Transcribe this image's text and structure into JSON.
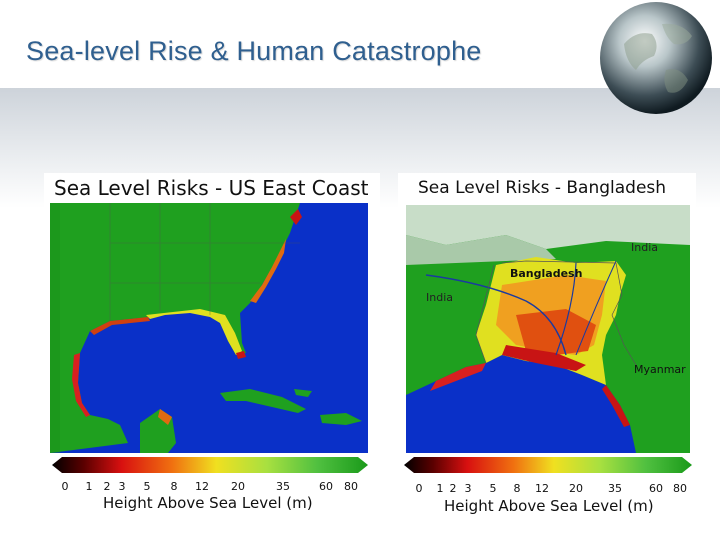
{
  "slide": {
    "title": "Sea-level Rise & Human Catastrophe"
  },
  "maps": [
    {
      "title": "Sea Level Risks - US East Coast",
      "ticks": [
        "0",
        "1",
        "2",
        "3",
        "5",
        "8",
        "12",
        "20",
        "35",
        "60",
        "80"
      ],
      "scale_label": "Height Above Sea Level (m)"
    },
    {
      "title": "Sea Level Risks - Bangladesh",
      "ticks": [
        "0",
        "1",
        "2",
        "3",
        "5",
        "8",
        "12",
        "20",
        "35",
        "60",
        "80"
      ],
      "scale_label": "Height Above Sea Level (m)",
      "places": [
        "Bangladesh",
        "India",
        "India",
        "Myanmar"
      ]
    }
  ],
  "colors": {
    "title": "#2f5f8f",
    "ocean": "#0a30c8",
    "land_high": "#1fa01f",
    "land_low": "#e0e020",
    "coast_risk": "#c81414"
  }
}
